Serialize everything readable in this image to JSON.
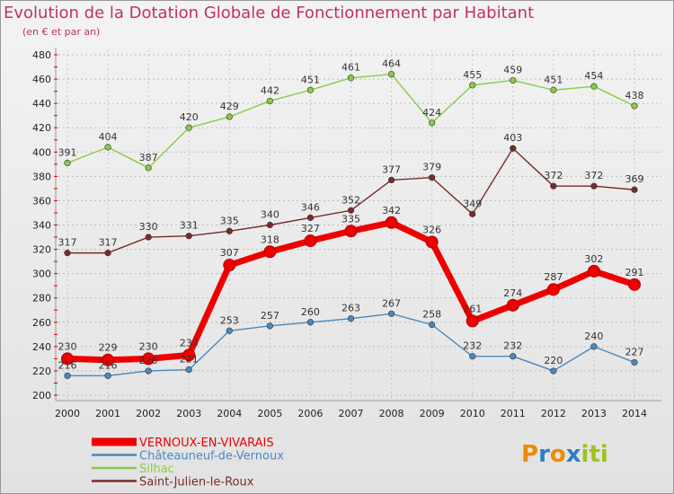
{
  "chart_data": {
    "type": "line",
    "title": "Evolution de la Dotation Globale de Fonctionnement par Habitant",
    "subtitle": "(en € et par an)",
    "x": [
      "2000",
      "2001",
      "2002",
      "2003",
      "2004",
      "2005",
      "2006",
      "2007",
      "2008",
      "2009",
      "2010",
      "2011",
      "2012",
      "2013",
      "2014"
    ],
    "ylim": [
      200,
      480
    ],
    "yticks": [
      200,
      220,
      240,
      260,
      280,
      300,
      320,
      340,
      360,
      380,
      400,
      420,
      440,
      460,
      480
    ],
    "grid": true,
    "legend_position": "bottom-left",
    "series": [
      {
        "name": "Silhac",
        "color": "#88cc44",
        "values": [
          391,
          404,
          387,
          420,
          429,
          442,
          451,
          461,
          464,
          424,
          455,
          459,
          451,
          454,
          438
        ]
      },
      {
        "name": "Saint-Julien-le-Roux",
        "color": "#7a2a2a",
        "values": [
          317,
          317,
          330,
          331,
          335,
          340,
          346,
          352,
          377,
          379,
          349,
          403,
          372,
          372,
          369
        ]
      },
      {
        "name": "Châteauneuf-de-Vernoux",
        "color": "#4b88c0",
        "values": [
          216,
          216,
          220,
          221,
          253,
          257,
          260,
          263,
          267,
          258,
          232,
          232,
          220,
          240,
          227
        ]
      },
      {
        "name": "VERNOUX-EN-VIVARAIS",
        "color": "#ee0000",
        "values": [
          230,
          229,
          230,
          233,
          307,
          318,
          327,
          335,
          342,
          326,
          261,
          274,
          287,
          302,
          291
        ]
      }
    ],
    "legend_order": [
      "VERNOUX-EN-VIVARAIS",
      "Châteauneuf-de-Vernoux",
      "Silhac",
      "Saint-Julien-le-Roux"
    ]
  },
  "logo": {
    "letters": [
      "P",
      "r",
      "o",
      "x",
      "i",
      "t",
      "i"
    ],
    "colors": [
      "#f08a00",
      "#2e7fc1",
      "#f08a00",
      "#2e7fc1",
      "#9bc31d",
      "#9bc31d",
      "#9bc31d"
    ]
  }
}
